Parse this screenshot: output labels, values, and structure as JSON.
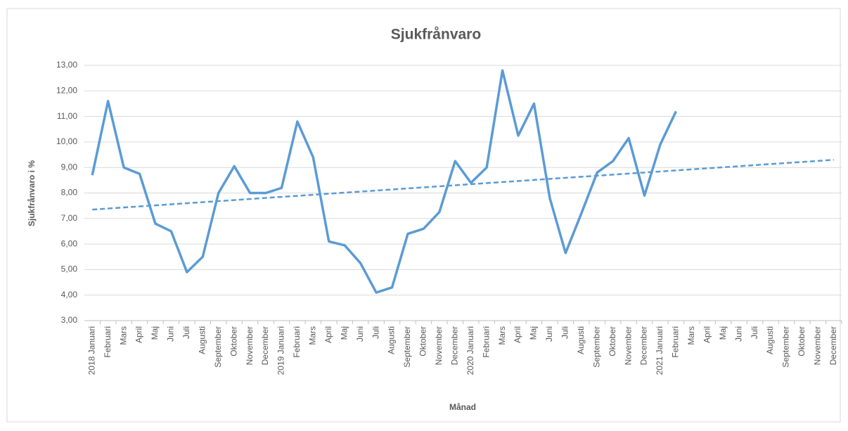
{
  "chart_data": {
    "type": "line",
    "title": "Sjukfrånvaro",
    "x_label": "Månad",
    "y_label": "Sjukfrånvaro i %",
    "categories": [
      "2018 Januari",
      "Februari",
      "Mars",
      "April",
      "Maj",
      "Juni",
      "Juli",
      "Augusti",
      "September",
      "Oktober",
      "November",
      "December",
      "2019 Januari",
      "Februari",
      "Mars",
      "April",
      "Maj",
      "Juni",
      "Juli",
      "Augusti",
      "September",
      "Oktober",
      "November",
      "December",
      "2020 Januari",
      "Februari",
      "Mars",
      "April",
      "Maj",
      "Juni",
      "Juli",
      "Augusti",
      "September",
      "Oktober",
      "November",
      "December",
      "2021 Januari",
      "Februari",
      "Mars",
      "April",
      "Maj",
      "Juni",
      "Juli",
      "Augusti",
      "September",
      "Oktober",
      "November",
      "December"
    ],
    "series": [
      {
        "color": "#5b9bd5",
        "values": [
          8.7,
          11.6,
          9.0,
          8.75,
          6.8,
          6.5,
          4.9,
          5.5,
          8.0,
          9.05,
          8.0,
          8.0,
          8.2,
          10.8,
          9.4,
          6.1,
          5.95,
          5.25,
          4.1,
          4.3,
          6.4,
          6.6,
          7.25,
          9.25,
          8.4,
          9.0,
          12.8,
          10.25,
          11.5,
          7.8,
          5.65,
          7.2,
          8.8,
          9.25,
          10.15,
          7.9,
          9.9,
          11.2,
          null,
          null,
          null,
          null,
          null,
          null,
          null,
          null,
          null,
          null
        ]
      }
    ],
    "trend": {
      "color": "#5b9bd5",
      "start": 7.35,
      "end": 9.3
    },
    "ylim": [
      3,
      13
    ],
    "yticks": [
      {
        "value": 3,
        "label": "3,00"
      },
      {
        "value": 4,
        "label": "4,00"
      },
      {
        "value": 5,
        "label": "5,00"
      },
      {
        "value": 6,
        "label": "6,00"
      },
      {
        "value": 7,
        "label": "7,00"
      },
      {
        "value": 8,
        "label": "8,00"
      },
      {
        "value": 9,
        "label": "9,00"
      },
      {
        "value": 10,
        "label": "10,00"
      },
      {
        "value": 11,
        "label": "11,00"
      },
      {
        "value": 12,
        "label": "12,00"
      },
      {
        "value": 13,
        "label": "13,00"
      }
    ],
    "grid": true
  }
}
